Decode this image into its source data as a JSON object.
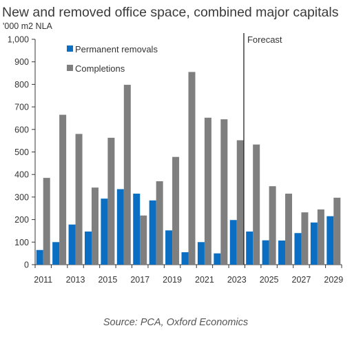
{
  "chart_data": {
    "type": "bar",
    "title": "New and removed office space, combined major capitals",
    "subtitle": "'000 m2 NLA",
    "source": "Source: PCA, Oxford Economics",
    "x": [
      2011,
      2012,
      2013,
      2014,
      2015,
      2016,
      2017,
      2018,
      2019,
      2020,
      2021,
      2022,
      2023,
      2024,
      2025,
      2026,
      2027,
      2028,
      2029
    ],
    "x_tick_labels": [
      "2011",
      "2013",
      "2015",
      "2017",
      "2019",
      "2021",
      "2023",
      "2025",
      "2027",
      "2029"
    ],
    "ylim": [
      0,
      1000
    ],
    "y_ticks": [
      0,
      100,
      200,
      300,
      400,
      500,
      600,
      700,
      800,
      900,
      1000
    ],
    "y_tick_labels": [
      "0",
      "100",
      "200",
      "300",
      "400",
      "500",
      "600",
      "700",
      "800",
      "900",
      "1,000"
    ],
    "series": [
      {
        "name": "Permanent removals",
        "color": "#0a6fc2",
        "values": [
          65,
          100,
          178,
          147,
          293,
          335,
          315,
          285,
          152,
          55,
          100,
          50,
          198,
          147,
          108,
          107,
          140,
          187,
          215
        ]
      },
      {
        "name": "Completions",
        "color": "#7f7f7f",
        "values": [
          385,
          665,
          580,
          342,
          563,
          798,
          218,
          370,
          478,
          855,
          652,
          645,
          552,
          533,
          348,
          315,
          232,
          245,
          297
        ]
      }
    ],
    "annotations": [
      {
        "text": "Forecast",
        "x_after": 2023
      }
    ],
    "legend": "top-left",
    "grid": false
  }
}
